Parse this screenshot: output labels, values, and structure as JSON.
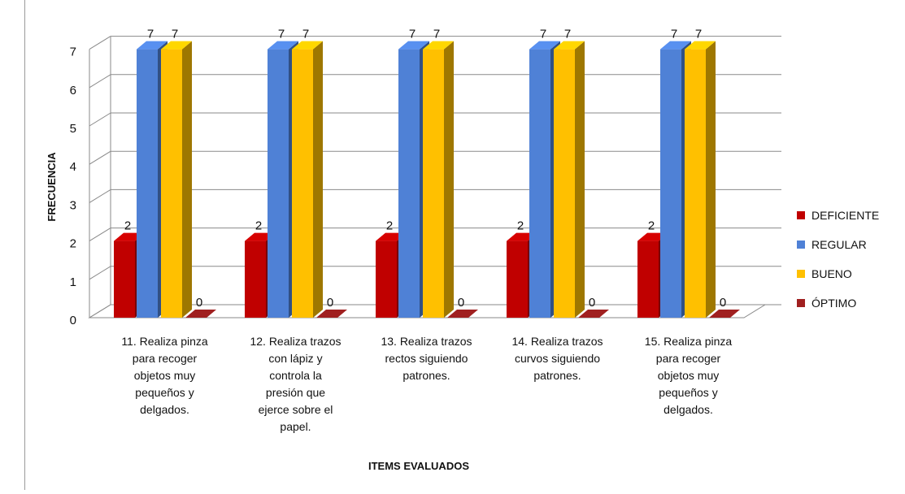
{
  "chart_data": {
    "type": "bar",
    "xlabel": "ITEMS EVALUADOS",
    "ylabel": "FRECUENCIA",
    "ylim": [
      0,
      7
    ],
    "yticks": [
      0,
      1,
      2,
      3,
      4,
      5,
      6,
      7
    ],
    "grid": true,
    "legend_position": "right",
    "categories": [
      [
        "11. Realiza pinza",
        "para recoger",
        "objetos muy",
        "pequeños y",
        "delgados."
      ],
      [
        "12. Realiza trazos",
        "con lápiz y",
        "controla la",
        "presión que",
        "ejerce sobre el",
        "papel."
      ],
      [
        "13. Realiza trazos",
        "rectos siguiendo",
        "patrones."
      ],
      [
        "14. Realiza trazos",
        "curvos siguiendo",
        "patrones."
      ],
      [
        "15. Realiza pinza",
        "para recoger",
        "objetos muy",
        "pequeños y",
        "delgados."
      ]
    ],
    "series": [
      {
        "name": "DEFICIENTE",
        "color": "#c00000",
        "values": [
          2,
          2,
          2,
          2,
          2
        ]
      },
      {
        "name": "REGULAR",
        "color": "#4f81d6",
        "values": [
          7,
          7,
          7,
          7,
          7
        ]
      },
      {
        "name": "BUENO",
        "color": "#ffc000",
        "values": [
          7,
          7,
          7,
          7,
          7
        ]
      },
      {
        "name": "ÓPTIMO",
        "color": "#a02020",
        "values": [
          0,
          0,
          0,
          0,
          0
        ]
      }
    ]
  }
}
